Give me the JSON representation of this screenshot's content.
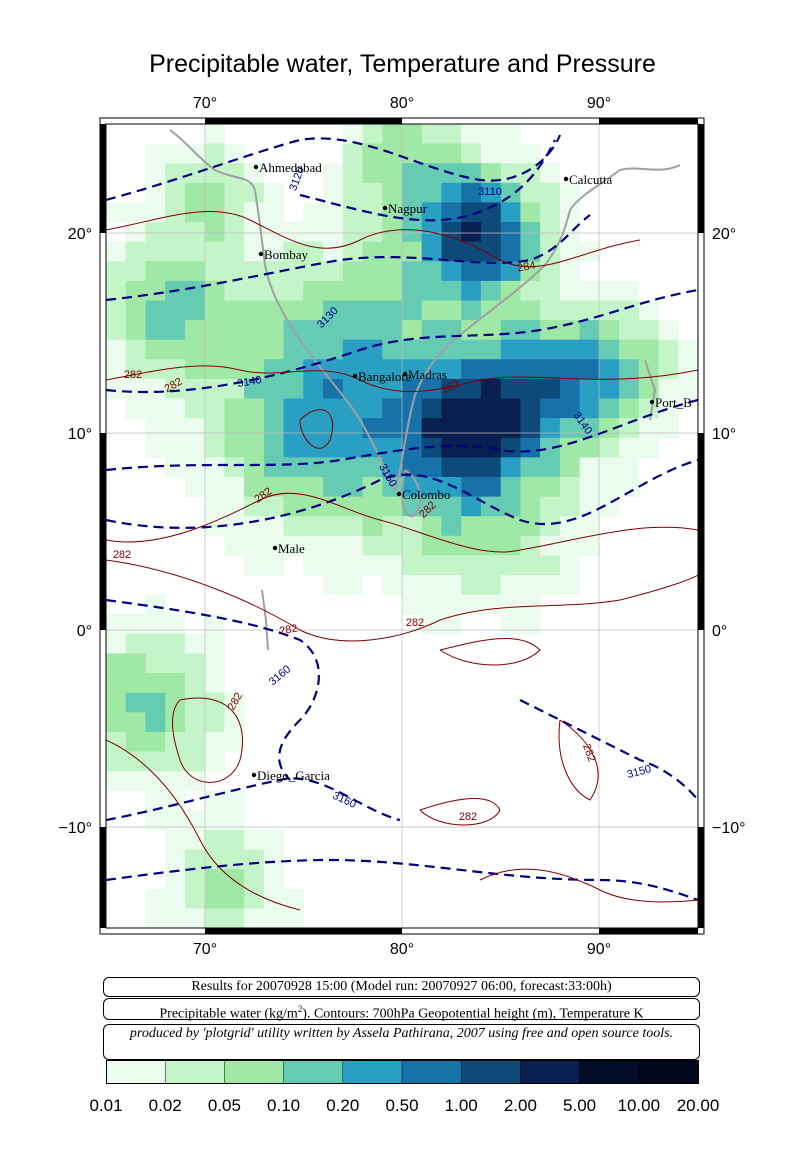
{
  "title": "Precipitable water, Temperature and Pressure",
  "axes": {
    "top_lon_labels": [
      "70°",
      "80°",
      "90°"
    ],
    "bottom_lon_labels": [
      "70°",
      "80°",
      "90°"
    ],
    "left_lat_labels": [
      "20°",
      "10°",
      "0°",
      "−10°"
    ],
    "right_lat_labels": [
      "20°",
      "10°",
      "0°",
      "−10°"
    ]
  },
  "cities": [
    "Ahmedabad",
    "Calcutta",
    "Nagpur",
    "Bombay",
    "Madras",
    "Bangalore",
    "Port_B",
    "Colombo",
    "Male",
    "Diego_Garcia"
  ],
  "contour_labels": {
    "geopotential": [
      "3120",
      "3110",
      "3130",
      "3140",
      "3140",
      "3150",
      "3160",
      "3160",
      "3150"
    ],
    "temperature": [
      "284",
      "282",
      "282",
      "282",
      "282",
      "282",
      "282",
      "282",
      "282",
      "282",
      "282",
      "282"
    ]
  },
  "info": {
    "line1": "Results for 20070928 15:00 (Model run: 20070927 06:00, forecast:33:00h)",
    "line2_prefix": "Precipitable water (kg/m",
    "line2_sup": "2",
    "line2_suffix": ").  Contours: 700hPa Geopotential height (m), Temperature K",
    "line3": "produced by 'plotgrid' utility written by Assela Pathirana, 2007 using free and open source tools."
  },
  "colorbar": {
    "labels": [
      "0.01",
      "0.02",
      "0.05",
      "0.10",
      "0.20",
      "0.50",
      "1.00",
      "2.00",
      "5.00",
      "10.00",
      "20.00"
    ],
    "colors": [
      "#ebfcee",
      "#c3f5c8",
      "#9fe8a6",
      "#66cbb3",
      "#2a9fc4",
      "#1672a8",
      "#0d4a7a",
      "#081f50",
      "#040c2c",
      "#02061a"
    ]
  },
  "colors": {
    "geopotential_contour": "#000080",
    "temperature_contour": "#800000",
    "coastline": "#a0a0a0"
  }
}
